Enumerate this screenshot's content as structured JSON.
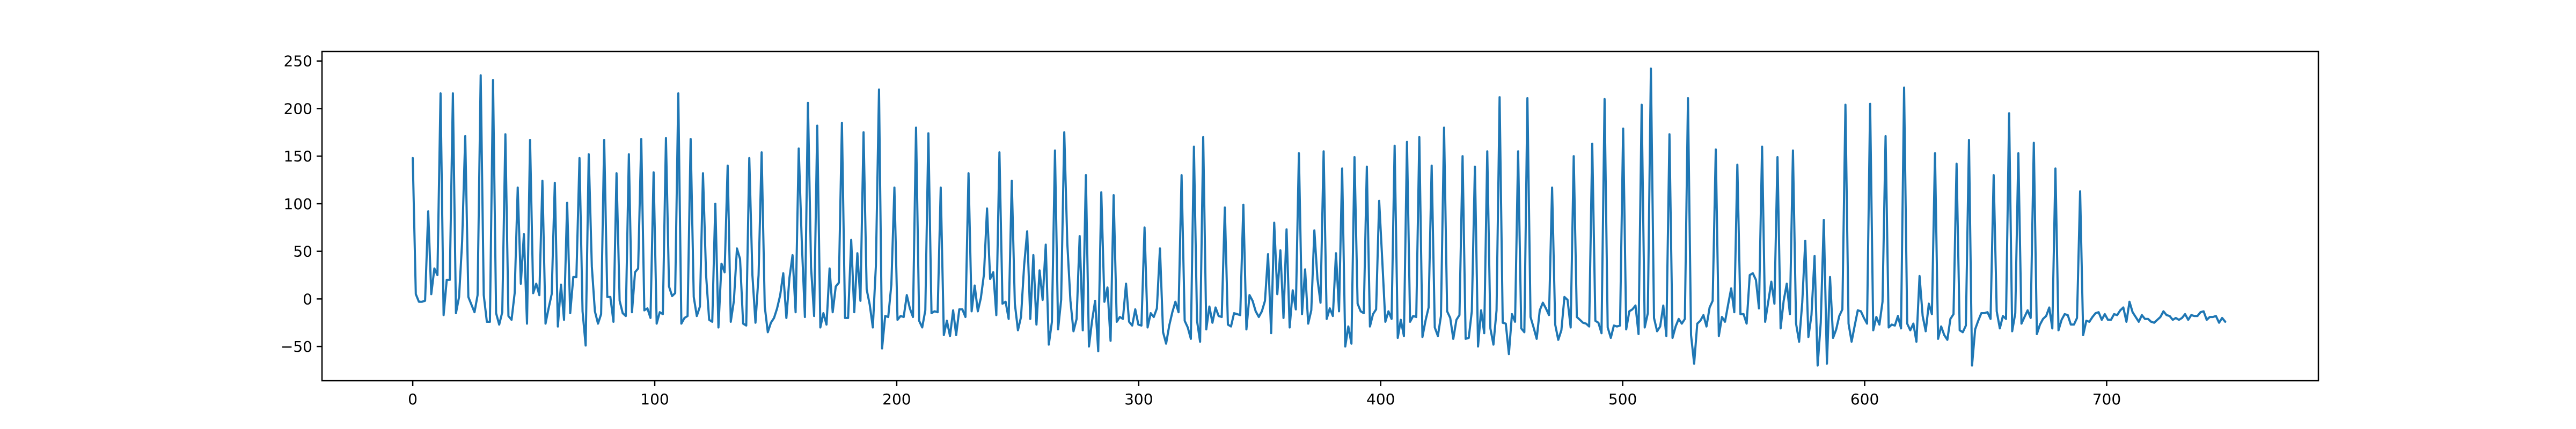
{
  "chart_data": {
    "type": "line",
    "title": "",
    "xlabel": "",
    "ylabel": "",
    "xlim": [
      -37.5,
      787.5
    ],
    "ylim": [
      -86,
      260
    ],
    "grid": false,
    "x_ticks": [
      0,
      100,
      200,
      300,
      400,
      500,
      600,
      700
    ],
    "y_ticks": [
      -50,
      0,
      50,
      100,
      150,
      200,
      250
    ],
    "line_color": "#1f77b4",
    "series": [
      {
        "x_start": 0,
        "x_step": 1,
        "values": [
          148,
          5,
          -3,
          -3,
          -2,
          92,
          5,
          32,
          25,
          216,
          -17,
          20,
          20,
          216,
          -15,
          2,
          60,
          171,
          2,
          -6,
          -14,
          4,
          235,
          4,
          -24,
          -24,
          230,
          -15,
          -27,
          -14,
          173,
          -18,
          -22,
          6,
          117,
          16,
          68,
          -26,
          167,
          6,
          16,
          4,
          124,
          -26,
          -10,
          5,
          122,
          -29,
          15,
          -22,
          101,
          -15,
          23,
          23,
          148,
          -13,
          -49,
          152,
          34,
          -13,
          -26,
          -16,
          167,
          2,
          2,
          -24,
          132,
          -2,
          -15,
          -18,
          152,
          -14,
          28,
          32,
          168,
          -12,
          -10,
          -20,
          133,
          -26,
          -14,
          -16,
          169,
          13,
          3,
          6,
          216,
          -26,
          -20,
          -18,
          168,
          2,
          -18,
          -8,
          132,
          25,
          -22,
          -24,
          100,
          -30,
          37,
          28,
          140,
          -24,
          -2,
          53,
          42,
          -26,
          -28,
          148,
          25,
          -25,
          25,
          154,
          -8,
          -35,
          -25,
          -20,
          -10,
          4,
          27,
          -20,
          22,
          46,
          -14,
          158,
          60,
          -19,
          206,
          33,
          -18,
          182,
          -30,
          -15,
          -27,
          32,
          -14,
          13,
          17,
          185,
          -20,
          -20,
          62,
          -14,
          48,
          -2,
          175,
          10,
          -6,
          -30,
          35,
          220,
          -52,
          -18,
          -19,
          15,
          117,
          -22,
          -18,
          -19,
          4,
          -10,
          -19,
          180,
          -23,
          -30,
          -12,
          174,
          -15,
          -13,
          -14,
          117,
          -38,
          -23,
          -39,
          -12,
          -38,
          -11,
          -11,
          -19,
          132,
          -13,
          14,
          -13,
          1,
          26,
          95,
          21,
          28,
          -17,
          154,
          -5,
          -3,
          -21,
          124,
          -5,
          -33,
          -19,
          35,
          71,
          -21,
          46,
          -27,
          30,
          -1,
          57,
          -48,
          -24,
          156,
          -32,
          -1,
          175,
          58,
          -2,
          -34,
          -21,
          66,
          -33,
          130,
          -50,
          -23,
          -2,
          -55,
          112,
          -3,
          12,
          -44,
          109,
          -24,
          -19,
          -21,
          16,
          -24,
          -28,
          -11,
          -27,
          -28,
          75,
          -30,
          -15,
          -19,
          -10,
          53,
          -35,
          -47,
          -28,
          -14,
          -3,
          -14,
          130,
          -23,
          -30,
          -42,
          160,
          -23,
          -45,
          170,
          -32,
          -8,
          -25,
          -9,
          -18,
          -19,
          96,
          -27,
          -29,
          -15,
          -16,
          -17,
          99,
          -32,
          4,
          -2,
          -13,
          -19,
          -13,
          -2,
          47,
          -36,
          80,
          5,
          51,
          -20,
          73,
          -30,
          9,
          -11,
          153,
          -16,
          31,
          -26,
          -12,
          72,
          21,
          -4,
          155,
          -21,
          -10,
          -18,
          48,
          -13,
          137,
          -50,
          -29,
          -47,
          149,
          -5,
          -13,
          -15,
          139,
          -29,
          -16,
          -11,
          103,
          40,
          -24,
          -13,
          -21,
          161,
          -41,
          -22,
          -39,
          165,
          -24,
          -18,
          -19,
          170,
          -40,
          -23,
          -9,
          140,
          -30,
          -39,
          -18,
          180,
          -13,
          -20,
          -42,
          -22,
          -17,
          150,
          -42,
          -41,
          -13,
          139,
          -50,
          -12,
          -36,
          155,
          -31,
          -48,
          -12,
          212,
          -25,
          -26,
          -58,
          -16,
          -24,
          155,
          -31,
          -35,
          211,
          -19,
          -30,
          -42,
          -12,
          -4,
          -10,
          -17,
          117,
          -27,
          -43,
          -33,
          2,
          -1,
          -30,
          150,
          -19,
          -22,
          -25,
          -26,
          -29,
          163,
          -23,
          -25,
          -36,
          210,
          -30,
          -41,
          -28,
          -29,
          -28,
          179,
          -32,
          -13,
          -11,
          -7,
          -37,
          204,
          -30,
          -15,
          242,
          -20,
          -34,
          -29,
          -7,
          -39,
          173,
          -41,
          -29,
          -21,
          -26,
          -21,
          211,
          -38,
          -68,
          -26,
          -23,
          -17,
          -29,
          -9,
          -2,
          157,
          -39,
          -19,
          -24,
          -6,
          11,
          -14,
          141,
          -16,
          -16,
          -26,
          25,
          27,
          20,
          -10,
          160,
          -24,
          -3,
          18,
          -5,
          149,
          -31,
          -2,
          16,
          -16,
          156,
          -26,
          -45,
          -4,
          61,
          -40,
          -17,
          45,
          -70,
          -25,
          83,
          -68,
          23,
          -41,
          -32,
          -18,
          -11,
          204,
          -26,
          -45,
          -28,
          -12,
          -13,
          -20,
          -26,
          205,
          -33,
          -19,
          -27,
          -3,
          171,
          -30,
          -27,
          -28,
          -18,
          -31,
          222,
          -26,
          -33,
          -26,
          -45,
          24,
          -18,
          -34,
          -5,
          -16,
          153,
          -42,
          -29,
          -38,
          -43,
          -21,
          -16,
          142,
          -33,
          -35,
          -28,
          167,
          -70,
          -32,
          -23,
          -15,
          -15,
          -14,
          -21,
          130,
          -13,
          -31,
          -18,
          -21,
          195,
          -34,
          -15,
          153,
          -26,
          -19,
          -12,
          -20,
          164,
          -37,
          -27,
          -21,
          -18,
          -9,
          -31,
          137,
          -33,
          -22,
          -16,
          -17,
          -27,
          -27,
          -20,
          113,
          -38,
          -23,
          -24,
          -19,
          -15,
          -14,
          -22,
          -16,
          -22,
          -22,
          -16,
          -17,
          -12,
          -9,
          -24,
          -3,
          -14,
          -19,
          -24,
          -17,
          -21,
          -21,
          -24,
          -25,
          -22,
          -19,
          -13,
          -17,
          -18,
          -22,
          -20,
          -22,
          -20,
          -16,
          -22,
          -17,
          -18,
          -18,
          -14,
          -13,
          -22,
          -19,
          -19,
          -18,
          -25,
          -20,
          -24
        ]
      }
    ]
  }
}
